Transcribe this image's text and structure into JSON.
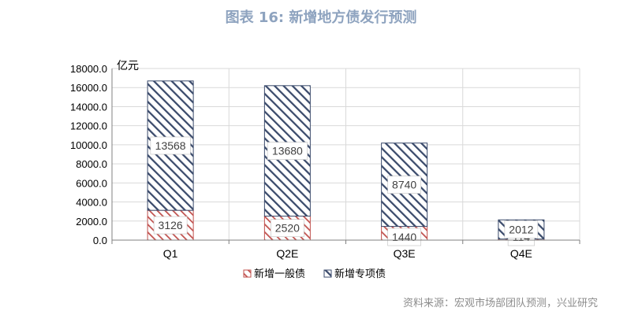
{
  "title": "图表 16: 新增地方债发行预测",
  "source": "资料来源：宏观市场部团队预测，兴业研究",
  "colors": {
    "general": "#c0504d",
    "special": "#3a4a6b",
    "grid": "#d9d9d9",
    "title": "#8ea3bf"
  },
  "chart_data": {
    "type": "bar",
    "stacked": true,
    "unit": "亿元",
    "categories": [
      "Q1",
      "Q2E",
      "Q3E",
      "Q4E"
    ],
    "series": [
      {
        "name": "新增一般债",
        "values": [
          3126,
          2520,
          1440,
          114
        ],
        "pattern": "hatched"
      },
      {
        "name": "新增专项债",
        "values": [
          13568,
          13680,
          8740,
          2012
        ],
        "pattern": "hatched"
      }
    ],
    "ylim": [
      0,
      18000
    ],
    "yticks": [
      "0.0",
      "2000.0",
      "4000.0",
      "6000.0",
      "8000.0",
      "10000.0",
      "12000.0",
      "14000.0",
      "16000.0",
      "18000.0"
    ],
    "grid": true,
    "legend": "bottom"
  }
}
